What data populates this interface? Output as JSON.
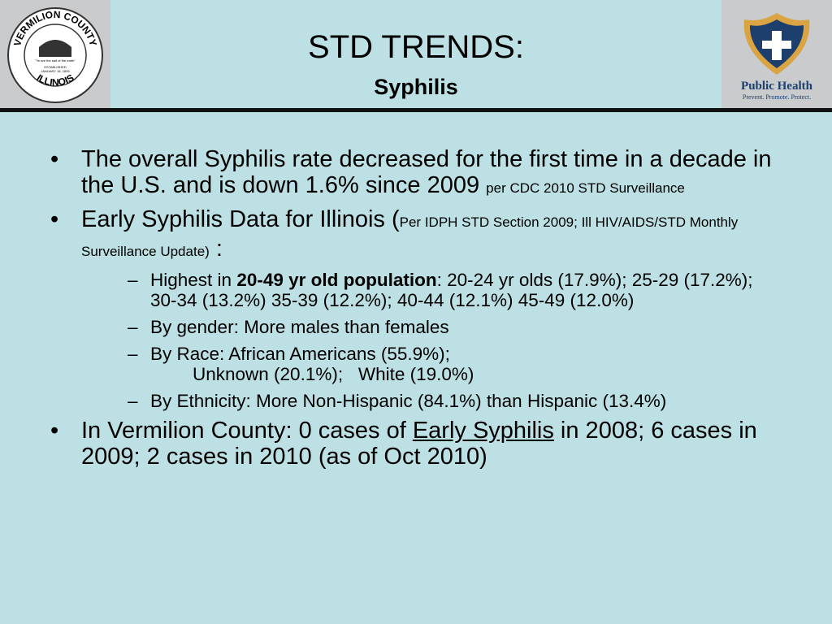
{
  "header": {
    "title": "STD TRENDS:",
    "subtitle": "Syphilis"
  },
  "left_logo": {
    "top": "VERMILION COUNTY",
    "bottom": "ILLINOIS",
    "motto": "\"Ye are the salt of the earth\"",
    "established": "ESTABLISHED",
    "date": "JANUARY 18, 1826"
  },
  "right_logo": {
    "name": "Public Health",
    "tagline": "Prevent. Promote. Protect."
  },
  "bullets": [
    {
      "text": "The overall Syphilis rate decreased for the first time in a decade in the U.S. and is down 1.6% since 2009",
      "note": "per CDC 2010 STD Surveillance"
    },
    {
      "text": "Early Syphilis Data for Illinois (",
      "note": "Per IDPH STD Section 2009; Ill HIV/AIDS/STD Monthly Surveillance Update)",
      "end": ":",
      "sub": [
        {
          "lead": "Highest in ",
          "bold": "20-49 yr old population",
          "text": ":  20-24 yr olds (17.9%); 25-29 (17.2%); 30-34 (13.2%) 35-39 (12.2%); 40-44 (12.1%) 45-49 (12.0%)"
        },
        {
          "text": "By gender:  More males than females"
        },
        {
          "text": "By Race:  African Americans (55.9%);",
          "line2": "Unknown (20.1%);   White (19.0%)"
        },
        {
          "text": "By Ethnicity: More Non-Hispanic (84.1%) than Hispanic (13.4%)"
        }
      ]
    },
    {
      "lead": "In Vermilion County: 0 cases of ",
      "underline": "Early Syphilis",
      "text": " in 2008; 6 cases in 2009; 2 cases in 2010 (as of Oct 2010)"
    }
  ]
}
